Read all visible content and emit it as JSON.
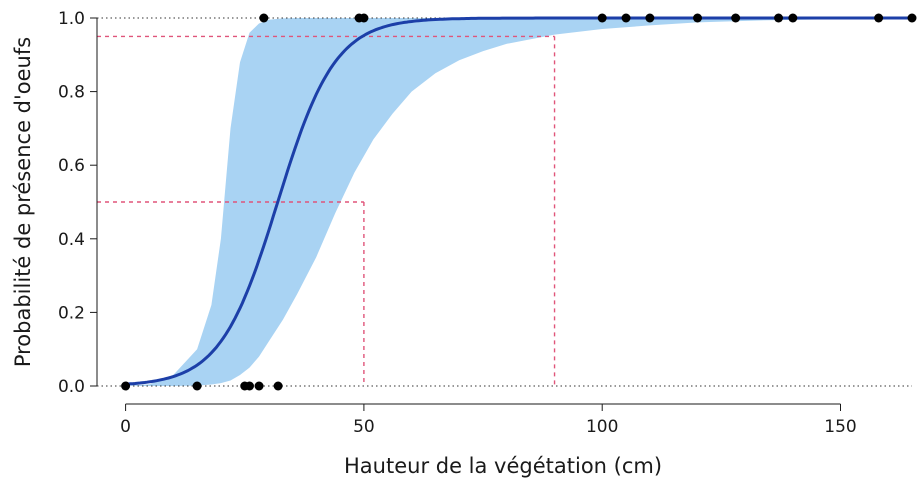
{
  "chart_data": {
    "type": "line",
    "title": "",
    "xlabel": "Hauteur de la végétation (cm)",
    "ylabel": "Probabilité de présence d'oeufs",
    "xlim": [
      -6,
      165
    ],
    "ylim": [
      0,
      1
    ],
    "x_ticks": [
      0,
      50,
      100,
      150
    ],
    "y_ticks": [
      0,
      0.2,
      0.4,
      0.6,
      0.8,
      1
    ],
    "x_tick_labels": [
      "0",
      "50",
      "100",
      "150"
    ],
    "y_tick_labels": [
      "0.0",
      "0.2",
      "0.4",
      "0.6",
      "0.8",
      "1.0"
    ],
    "grid": false,
    "legend": "none",
    "colors": {
      "curve": "#1c3fa8",
      "band": "#a9d3f3",
      "points": "#000000",
      "reference": "#e0557a",
      "dotted_bounds": "#333333"
    },
    "fitted_curve": {
      "intercept": -5.3,
      "slope": 0.166
    },
    "confidence_band": {
      "x": [
        0,
        5,
        10,
        15,
        18,
        20,
        22,
        24,
        26,
        28,
        30,
        33,
        36,
        40,
        44,
        48,
        52,
        56,
        60,
        65,
        70,
        75,
        80,
        90,
        100,
        110,
        120,
        135,
        150,
        165
      ],
      "lower": [
        0,
        0,
        0,
        0.001,
        0.004,
        0.008,
        0.015,
        0.03,
        0.05,
        0.08,
        0.12,
        0.18,
        0.25,
        0.35,
        0.47,
        0.58,
        0.67,
        0.74,
        0.8,
        0.85,
        0.885,
        0.91,
        0.93,
        0.955,
        0.97,
        0.98,
        0.988,
        0.994,
        0.997,
        0.999
      ],
      "upper": [
        0,
        0.005,
        0.03,
        0.1,
        0.22,
        0.4,
        0.7,
        0.88,
        0.96,
        0.985,
        0.995,
        0.999,
        1,
        1,
        1,
        1,
        1,
        1,
        1,
        1,
        1,
        1,
        1,
        1,
        1,
        1,
        1,
        1,
        1,
        1
      ]
    },
    "observations": {
      "x": [
        0,
        15,
        25,
        26,
        28,
        32,
        29,
        49,
        50,
        100,
        105,
        110,
        120,
        128,
        137,
        140,
        158,
        165
      ],
      "y": [
        0,
        0,
        0,
        0,
        0,
        0,
        1,
        1,
        1,
        1,
        1,
        1,
        1,
        1,
        1,
        1,
        1,
        1
      ]
    },
    "reference_lines": [
      {
        "y": 0.5,
        "x": 50
      },
      {
        "y": 0.95,
        "x": 90
      }
    ],
    "horizontal_bounds": [
      0,
      1
    ]
  }
}
